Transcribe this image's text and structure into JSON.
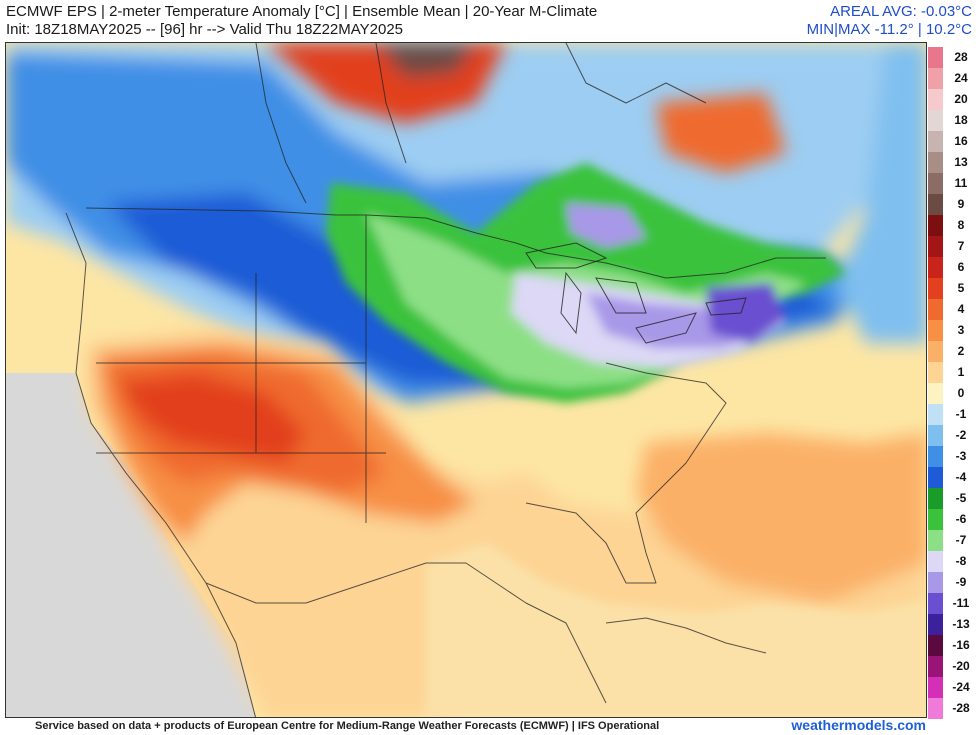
{
  "header": {
    "line1": "ECMWF EPS | 2-meter Temperature Anomaly [°C] | Ensemble Mean | 20-Year M-Climate",
    "line2": "Init: 18Z18MAY2025 -- [96] hr --> Valid Thu 18Z22MAY2025",
    "areal_avg": "AREAL AVG: -0.03°C",
    "min_max": "MIN|MAX -11.2° | 10.2°C"
  },
  "legend": {
    "entries": [
      {
        "label": "28",
        "color": "#e8778d"
      },
      {
        "label": "24",
        "color": "#f0a0a8"
      },
      {
        "label": "20",
        "color": "#f6c9cc"
      },
      {
        "label": "18",
        "color": "#e3d7d5"
      },
      {
        "label": "16",
        "color": "#c7b4b0"
      },
      {
        "label": "13",
        "color": "#a98e88"
      },
      {
        "label": "11",
        "color": "#8b6c66"
      },
      {
        "label": "9",
        "color": "#6c4b44"
      },
      {
        "label": "8",
        "color": "#7c1010"
      },
      {
        "label": "7",
        "color": "#a31616"
      },
      {
        "label": "6",
        "color": "#c9241a"
      },
      {
        "label": "5",
        "color": "#e2401f"
      },
      {
        "label": "4",
        "color": "#ef6a2f"
      },
      {
        "label": "3",
        "color": "#f78f45"
      },
      {
        "label": "2",
        "color": "#fbb067"
      },
      {
        "label": "1",
        "color": "#fdd494"
      },
      {
        "label": "0",
        "color": "#fdf3c2"
      },
      {
        "label": "-1",
        "color": "#bfe0f5"
      },
      {
        "label": "-2",
        "color": "#7fbfef"
      },
      {
        "label": "-3",
        "color": "#3f8fe6"
      },
      {
        "label": "-4",
        "color": "#1f5bd6"
      },
      {
        "label": "-5",
        "color": "#1a9c2a"
      },
      {
        "label": "-6",
        "color": "#3bc23c"
      },
      {
        "label": "-7",
        "color": "#8ddf86"
      },
      {
        "label": "-8",
        "color": "#dcd8f5"
      },
      {
        "label": "-9",
        "color": "#a898e8"
      },
      {
        "label": "-11",
        "color": "#6a4fd0"
      },
      {
        "label": "-13",
        "color": "#3b219c"
      },
      {
        "label": "-16",
        "color": "#5a0a3e"
      },
      {
        "label": "-20",
        "color": "#9a1478"
      },
      {
        "label": "-24",
        "color": "#d42fb7"
      },
      {
        "label": "-28",
        "color": "#f07ad8"
      }
    ]
  },
  "footer": {
    "credit": "Service based on data + products of European Centre for Medium-Range Weather Forecasts (ECMWF) | IFS Operational",
    "brand": "weathermodels.com"
  }
}
